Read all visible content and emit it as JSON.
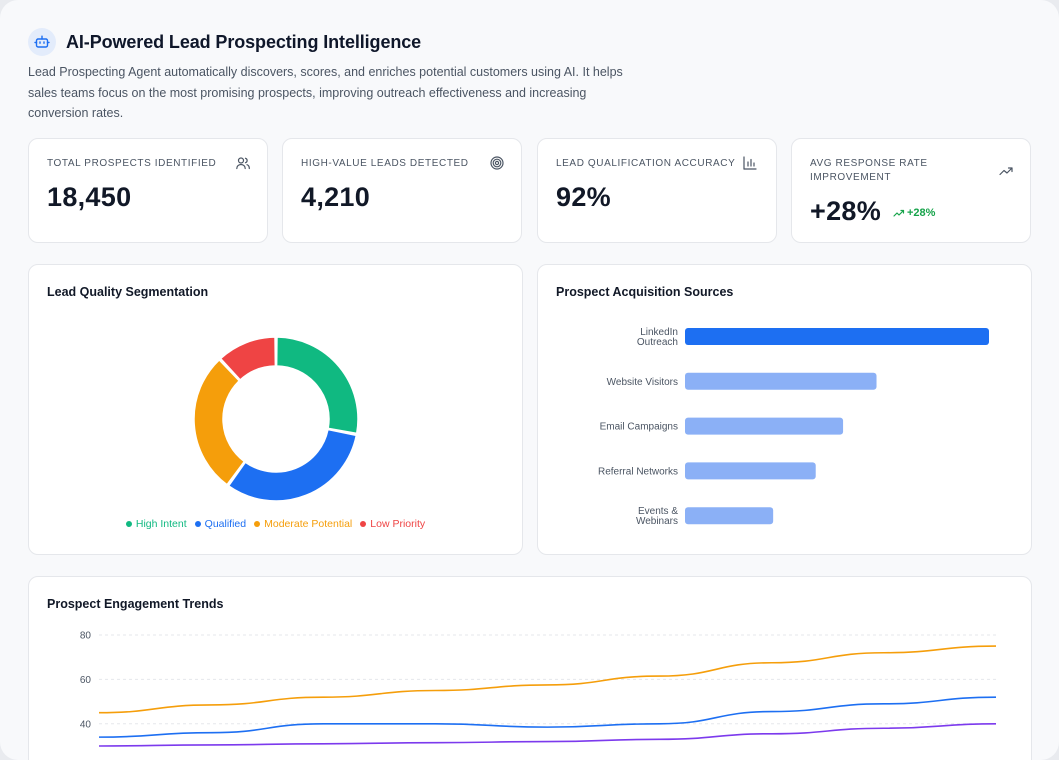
{
  "header": {
    "title": "AI-Powered Lead Prospecting Intelligence",
    "description": "Lead Prospecting Agent automatically discovers, scores, and enriches potential customers using AI. It helps sales teams focus on the most promising prospects, improving outreach effectiveness and increasing conversion rates.",
    "icon": "robot-icon"
  },
  "kpis": [
    {
      "label": "TOTAL PROSPECTS IDENTIFIED",
      "value": "18,450",
      "icon": "users-icon"
    },
    {
      "label": "HIGH-VALUE LEADS DETECTED",
      "value": "4,210",
      "icon": "target-icon"
    },
    {
      "label": "LEAD QUALIFICATION ACCURACY",
      "value": "92%",
      "icon": "bar-chart-icon"
    },
    {
      "label": "AVG RESPONSE RATE IMPROVEMENT",
      "value": "+28%",
      "icon": "trending-up-icon",
      "delta": "+28%"
    }
  ],
  "segmentation": {
    "title": "Lead Quality Segmentation",
    "chart_data": {
      "type": "pie",
      "categories": [
        "High Intent",
        "Qualified",
        "Moderate Potential",
        "Low Priority"
      ],
      "values": [
        28,
        32,
        28,
        12
      ],
      "colors": [
        "#10b981",
        "#1d6ff2",
        "#f59e0b",
        "#ef4444"
      ]
    }
  },
  "sources": {
    "title": "Prospect Acquisition Sources",
    "chart_data": {
      "type": "bar",
      "orientation": "horizontal",
      "categories": [
        [
          "LinkedIn",
          "Outreach"
        ],
        [
          "Website Visitors"
        ],
        [
          "Email Campaigns"
        ],
        [
          "Referral Networks"
        ],
        [
          "Events &",
          "Webinars"
        ]
      ],
      "values": [
        100,
        63,
        52,
        43,
        29
      ],
      "colors": [
        "#1d6ff2",
        "#8bb0f6",
        "#8bb0f6",
        "#8bb0f6",
        "#8bb0f6"
      ]
    }
  },
  "trends": {
    "title": "Prospect Engagement Trends",
    "chart_data": {
      "type": "line",
      "ylim": [
        20,
        80
      ],
      "yticks": [
        80,
        60,
        40
      ],
      "x_count": 9,
      "series": [
        {
          "values": [
            45,
            48.5,
            52,
            55,
            57.5,
            61.5,
            67.5,
            72,
            75
          ],
          "color": "#f59e0b"
        },
        {
          "values": [
            34,
            36,
            40,
            40,
            38.5,
            40,
            45.5,
            49,
            52
          ],
          "color": "#1d6ff2"
        },
        {
          "values": [
            30,
            30.5,
            31,
            31.5,
            32,
            33,
            35.5,
            38,
            40
          ],
          "color": "#7c3aed"
        }
      ]
    }
  }
}
